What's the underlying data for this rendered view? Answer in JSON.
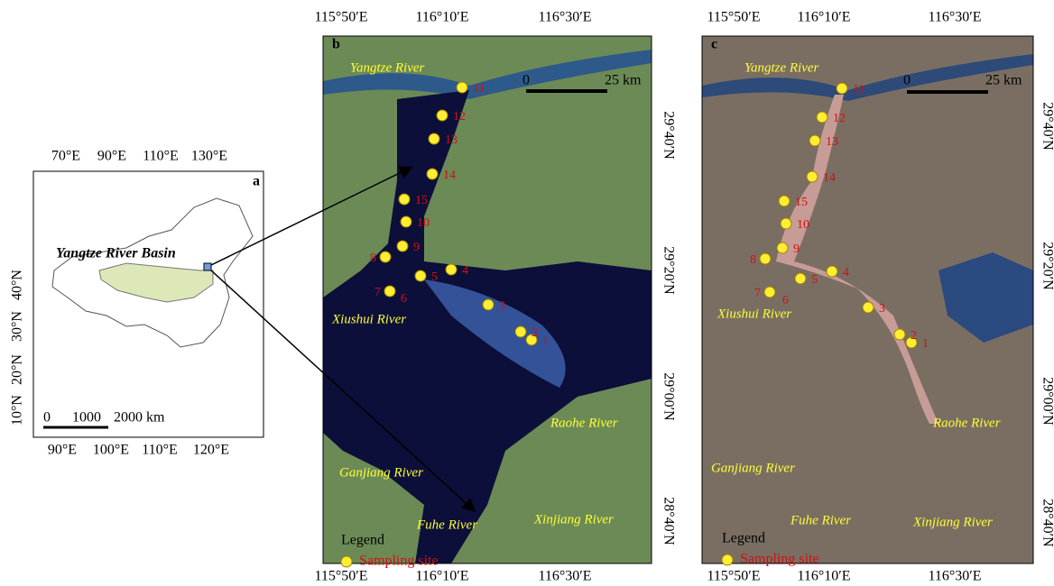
{
  "panel_a": {
    "label": "a",
    "top_ticks": [
      "70°E",
      "90°E",
      "110°E",
      "130°E"
    ],
    "bottom_ticks": [
      "90°E",
      "100°E",
      "110°E",
      "120°E"
    ],
    "left_ticks": [
      "40°N",
      "30°N",
      "20°N",
      "10°N"
    ],
    "basin_label": "Yangtze River Basin",
    "scale": [
      "0",
      "1000",
      "2000 km"
    ]
  },
  "panel_b": {
    "label": "b",
    "top_ticks": [
      "115°50′E",
      "116°10′E",
      "116°30′E"
    ],
    "bottom_ticks": [
      "115°50′E",
      "116°10′E",
      "116°30′E"
    ],
    "right_ticks": [
      "29°40′N",
      "29°20′N",
      "29°00′N",
      "28°40′N"
    ],
    "rivers": [
      "Yangtze River",
      "Xiushui River",
      "Raohe River",
      "Ganjiang River",
      "Fuhe River",
      "Xinjiang River"
    ],
    "scale": [
      "0",
      "25 km"
    ],
    "legend_title": "Legend",
    "legend_item": "Sampling site",
    "sites": [
      "1",
      "2",
      "3",
      "4",
      "5",
      "6",
      "7",
      "8",
      "9",
      "10",
      "11",
      "12",
      "13",
      "14",
      "15"
    ]
  },
  "panel_c": {
    "label": "c",
    "top_ticks": [
      "115°50′E",
      "116°10′E",
      "116°30′E"
    ],
    "bottom_ticks": [
      "115°50′E",
      "116°10′E",
      "116°30′E"
    ],
    "right_ticks": [
      "29°40′N",
      "29°20′N",
      "29°00′N",
      "28°40′N"
    ],
    "rivers": [
      "Yangtze River",
      "Xiushui River",
      "Raohe River",
      "Ganjiang River",
      "Fuhe River",
      "Xinjiang River"
    ],
    "scale": [
      "0",
      "25 km"
    ],
    "legend_title": "Legend",
    "legend_item": "Sampling site",
    "sites": [
      "1",
      "2",
      "3",
      "4",
      "5",
      "6",
      "7",
      "8",
      "9",
      "10",
      "11",
      "12",
      "13",
      "14",
      "15"
    ]
  }
}
